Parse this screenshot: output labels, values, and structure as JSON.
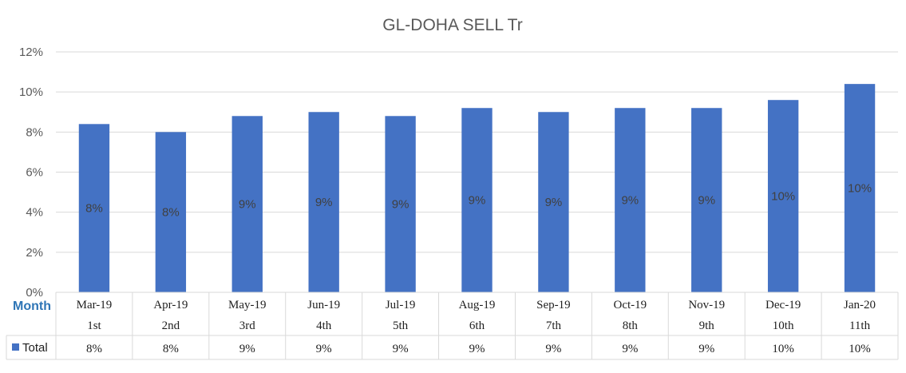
{
  "chart_data": {
    "type": "bar",
    "title": "GL-DOHA SELL Tr",
    "xlabel": "Month",
    "ylabel": "",
    "ylim": [
      0,
      12
    ],
    "yticks": [
      "0%",
      "2%",
      "4%",
      "6%",
      "8%",
      "10%",
      "12%"
    ],
    "grid": true,
    "legend": "data-table",
    "categories": [
      "Mar-19",
      "Apr-19",
      "May-19",
      "Jun-19",
      "Jul-19",
      "Aug-19",
      "Sep-19",
      "Oct-19",
      "Nov-19",
      "Dec-19",
      "Jan-20"
    ],
    "subcategories": [
      "1st",
      "2nd",
      "3rd",
      "4th",
      "5th",
      "6th",
      "7th",
      "8th",
      "9th",
      "10th",
      "11th"
    ],
    "series": [
      {
        "name": "Total",
        "color": "#4472c4",
        "values": [
          8.4,
          8.0,
          8.8,
          9.0,
          8.8,
          9.2,
          9.0,
          9.2,
          9.2,
          9.6,
          10.4
        ],
        "labels": [
          "8%",
          "8%",
          "9%",
          "9%",
          "9%",
          "9%",
          "9%",
          "9%",
          "9%",
          "10%",
          "10%"
        ]
      }
    ]
  }
}
